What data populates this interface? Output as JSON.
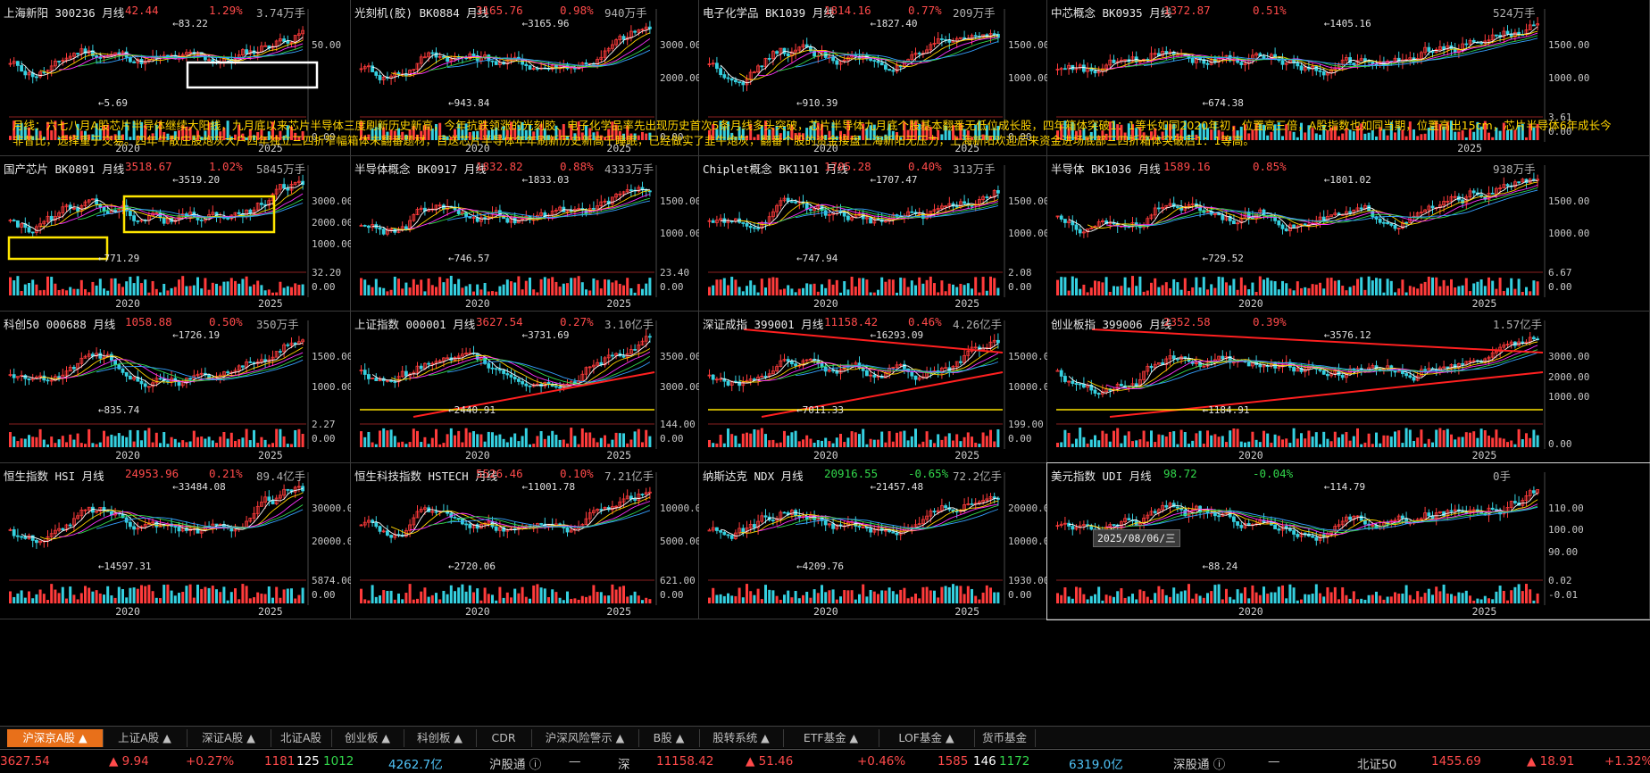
{
  "note": "月线：六七八月A股芯片半导体继续大阳线，九月底以来芯片半导体三度刷新历史新高，今年抗跌领涨的光刻胶、电子化学品率先出现历史首次5条月线多头突破，芯片半导体九月底个股基本翻番无低位成长股，四年箱体突破1：1等长如同2020年初，位置高三倍，A股指数也如同当期，位置高出15cm，芯片半导体6年成长今非昔比，选择重于交易。四年牛散庄股炮灰大户四年独立三四折窄幅箱体未翻番题材，目送芯片半导体年年刷新历史新高千睡眠，已经做实了韭牛炮灰，翻番个股的资金接盘上海新阳无压力，上海新阳欢迎后来资金进场底部三四折箱体突破后1：1等高。",
  "date_tip": "2025/08/06/三",
  "panels": [
    {
      "name": "上海新阳 300236 月线",
      "price": "42.44",
      "pct": "1.29%",
      "vol": "3.74万手",
      "dir": "up",
      "hi": "83.22",
      "lo": "5.69",
      "axis": [
        "50.00"
      ],
      "vaxis": [
        "0.00"
      ],
      "years": [
        "2020",
        "2025"
      ],
      "box": "white"
    },
    {
      "name": "光刻机(胶) BK0884 月线",
      "price": "3165.76",
      "pct": "0.98%",
      "vol": "940万手",
      "dir": "up",
      "hi": "3165.96",
      "lo": "943.84",
      "axis": [
        "3000.00",
        "2000.00"
      ],
      "vaxis": [
        "0.00"
      ],
      "years": [
        "2020",
        "2025"
      ]
    },
    {
      "name": "电子化学品 BK1039 月线",
      "price": "1814.16",
      "pct": "0.77%",
      "vol": "209万手",
      "dir": "up",
      "hi": "1827.40",
      "lo": "910.39",
      "axis": [
        "1500.00",
        "1000.00"
      ],
      "vaxis": [
        "0.00"
      ],
      "years": [
        "2020",
        "2025"
      ]
    },
    {
      "name": "中芯概念 BK0935 月线",
      "price": "1372.87",
      "pct": "0.51%",
      "vol": "524万手",
      "dir": "up",
      "hi": "1405.16",
      "lo": "674.38",
      "axis": [
        "1500.00",
        "1000.00"
      ],
      "vaxis": [
        "3.61",
        "0.00"
      ],
      "years": [
        "2025"
      ]
    },
    {
      "name": "国产芯片 BK0891 月线",
      "price": "3518.67",
      "pct": "1.02%",
      "vol": "5845万手",
      "dir": "up",
      "hi": "3519.20",
      "lo": "771.29",
      "axis": [
        "3000.00",
        "2000.00",
        "1000.00"
      ],
      "vaxis": [
        "32.20",
        "0.00"
      ],
      "years": [
        "2020",
        "2025"
      ],
      "box": "yellow"
    },
    {
      "name": "半导体概念 BK0917 月线",
      "price": "1832.82",
      "pct": "0.88%",
      "vol": "4333万手",
      "dir": "up",
      "hi": "1833.03",
      "lo": "746.57",
      "axis": [
        "1500.00",
        "1000.00"
      ],
      "vaxis": [
        "23.40",
        "0.00"
      ],
      "years": [
        "2020",
        "2025"
      ]
    },
    {
      "name": "Chiplet概念 BK1101 月线",
      "price": "1705.28",
      "pct": "0.40%",
      "vol": "313万手",
      "dir": "up",
      "hi": "1707.47",
      "lo": "747.94",
      "axis": [
        "1500.00",
        "1000.00"
      ],
      "vaxis": [
        "2.08",
        "0.00"
      ],
      "years": [
        "2020",
        "2025"
      ]
    },
    {
      "name": "半导体 BK1036 月线",
      "price": "1589.16",
      "pct": "0.85%",
      "vol": "938万手",
      "dir": "up",
      "hi": "1801.02",
      "lo": "729.52",
      "axis": [
        "1500.00",
        "1000.00"
      ],
      "vaxis": [
        "6.67",
        "0.00"
      ],
      "years": [
        "2020",
        "2025"
      ]
    },
    {
      "name": "科创50 000688 月线",
      "price": "1058.88",
      "pct": "0.50%",
      "vol": "350万手",
      "dir": "up",
      "hi": "1726.19",
      "lo": "835.74",
      "axis": [
        "1500.00",
        "1000.00"
      ],
      "vaxis": [
        "2.27",
        "0.00"
      ],
      "years": [
        "2020",
        "2025"
      ]
    },
    {
      "name": "上证指数 000001 月线",
      "price": "3627.54",
      "pct": "0.27%",
      "vol": "3.10亿手",
      "dir": "up",
      "hi": "3731.69",
      "lo": "2440.91",
      "axis": [
        "3500.00",
        "3000.00"
      ],
      "vaxis": [
        "144.00",
        "0.00"
      ],
      "years": [
        "2020",
        "2025"
      ],
      "trend": true
    },
    {
      "name": "深证成指 399001 月线",
      "price": "11158.42",
      "pct": "0.46%",
      "vol": "4.26亿手",
      "dir": "up",
      "hi": "16293.09",
      "lo": "7011.33",
      "axis": [
        "15000.00",
        "10000.00"
      ],
      "vaxis": [
        "199.00",
        "0.00"
      ],
      "years": [
        "2020",
        "2025"
      ],
      "trend": true
    },
    {
      "name": "创业板指 399006 月线",
      "price": "2352.58",
      "pct": "0.39%",
      "vol": "1.57亿手",
      "dir": "up",
      "hi": "3576.12",
      "lo": "1184.91",
      "axis": [
        "3000.00",
        "2000.00",
        "1000.00"
      ],
      "vaxis": [
        "0.00"
      ],
      "years": [
        "2020",
        "2025"
      ],
      "trend": true
    },
    {
      "name": "恒生指数 HSI 月线",
      "price": "24953.96",
      "pct": "0.21%",
      "vol": "89.4亿手",
      "dir": "up",
      "hi": "33484.08",
      "lo": "14597.31",
      "axis": [
        "30000.0",
        "20000.0"
      ],
      "vaxis": [
        "5874.00",
        "0.00"
      ],
      "years": [
        "2020",
        "2025"
      ]
    },
    {
      "name": "恒生科技指数 HSTECH 月线",
      "price": "5526.46",
      "pct": "0.10%",
      "vol": "7.21亿手",
      "dir": "up",
      "hi": "11001.78",
      "lo": "2720.06",
      "axis": [
        "10000.00",
        "5000.00"
      ],
      "vaxis": [
        "621.00",
        "0.00"
      ],
      "years": [
        "2020",
        "2025"
      ]
    },
    {
      "name": "纳斯达克 NDX 月线",
      "price": "20916.55",
      "pct": "-0.65%",
      "vol": "72.2亿手",
      "dir": "dn",
      "hi": "21457.48",
      "lo": "4209.76",
      "axis": [
        "20000.0",
        "10000.0"
      ],
      "vaxis": [
        "1930.00",
        "0.00"
      ],
      "years": [
        "2020",
        "2025"
      ]
    },
    {
      "name": "美元指数 UDI 月线",
      "price": "98.72",
      "pct": "-0.04%",
      "vol": "0手",
      "dir": "dn",
      "hi": "114.79",
      "lo": "88.24",
      "axis": [
        "110.00",
        "100.00",
        "90.00"
      ],
      "vaxis": [
        "0.02",
        "-0.01"
      ],
      "years": [
        "2020",
        "2025"
      ]
    }
  ],
  "tabs": [
    "沪深京A股 ▲",
    "上证A股 ▲",
    "深证A股 ▲",
    "北证A股",
    "创业板 ▲",
    "科创板 ▲",
    "CDR",
    "沪深风险警示 ▲",
    "B股 ▲",
    "股转系统 ▲",
    "ETF基金 ▲",
    "LOF基金 ▲",
    "货币基金"
  ],
  "status": [
    {
      "t": "3627.54",
      "c": "#ff4a4a"
    },
    {
      "t": "▲ 9.94",
      "c": "#ff4a4a"
    },
    {
      "t": "+0.27%",
      "c": "#ff4a4a"
    },
    {
      "t": "1181",
      "c": "#ff4a4a"
    },
    {
      "t": "125",
      "c": "#ffffff"
    },
    {
      "t": "1012",
      "c": "#32d74b"
    },
    {
      "t": "4262.7亿",
      "c": "#4fc3f7"
    },
    {
      "t": "沪股通 ⓘ",
      "c": "#d0d0d0"
    },
    {
      "t": "—",
      "c": "#d0d0d0"
    },
    {
      "t": "深",
      "c": "#d0d0d0"
    },
    {
      "t": "11158.42",
      "c": "#ff4a4a"
    },
    {
      "t": "▲ 51.46",
      "c": "#ff4a4a"
    },
    {
      "t": "+0.46%",
      "c": "#ff4a4a"
    },
    {
      "t": "1585",
      "c": "#ff4a4a"
    },
    {
      "t": "146",
      "c": "#ffffff"
    },
    {
      "t": "1172",
      "c": "#32d74b"
    },
    {
      "t": "6319.0亿",
      "c": "#4fc3f7"
    },
    {
      "t": "深股通 ⓘ",
      "c": "#d0d0d0"
    },
    {
      "t": "—",
      "c": "#d0d0d0"
    },
    {
      "t": "北证50",
      "c": "#d0d0d0"
    },
    {
      "t": "1455.69",
      "c": "#ff4a4a"
    },
    {
      "t": "▲ 18.91",
      "c": "#ff4a4a"
    },
    {
      "t": "+1.32%",
      "c": "#ff4a4a"
    }
  ]
}
